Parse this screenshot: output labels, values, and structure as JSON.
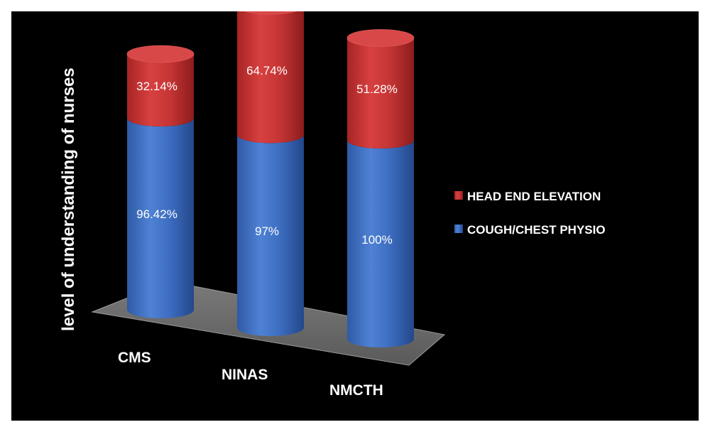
{
  "chart_data": {
    "type": "bar",
    "stacked": true,
    "style": "3d-cylinder",
    "title": "",
    "xlabel": "",
    "ylabel": "level of understanding of nurses",
    "categories": [
      "CMS",
      "NINAS",
      "NMCTH"
    ],
    "series": [
      {
        "name": "COUGH/CHEST PHYSIO",
        "values": [
          96.42,
          97,
          100
        ],
        "labels": [
          "96.42%",
          "97%",
          "100%"
        ],
        "color": "#3f6fc0"
      },
      {
        "name": "HEAD END ELEVATION",
        "values": [
          32.14,
          64.74,
          51.28
        ],
        "labels": [
          "32.14%",
          "64.74%",
          "51.28%"
        ],
        "color": "#c83232"
      }
    ],
    "legend": {
      "placement": "right",
      "order": [
        "HEAD END ELEVATION",
        "COUGH/CHEST PHYSIO"
      ]
    },
    "grid": false,
    "background": "#000000",
    "floor_color": "#6b6b6b"
  }
}
